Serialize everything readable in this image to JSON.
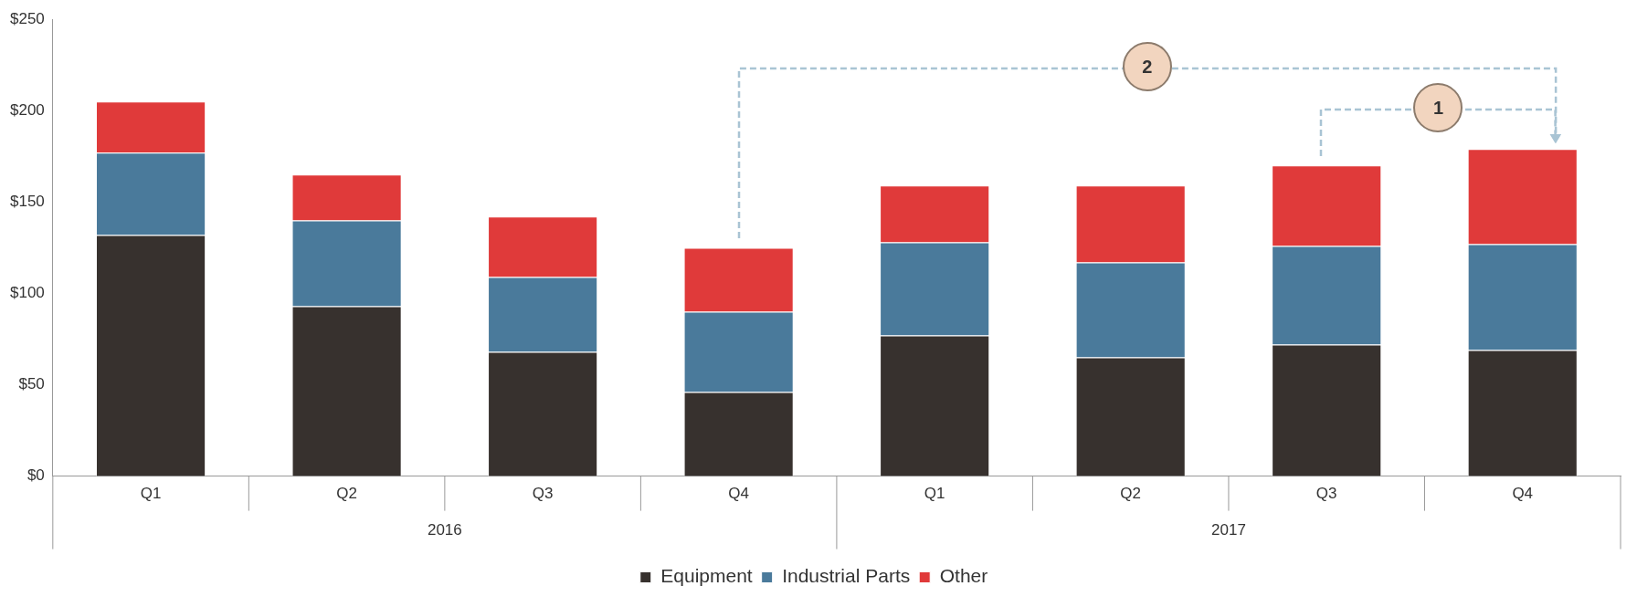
{
  "chart_data": {
    "type": "bar",
    "stacked": true,
    "categories": [
      "Q1",
      "Q2",
      "Q3",
      "Q4",
      "Q1",
      "Q2",
      "Q3",
      "Q4"
    ],
    "series": [
      {
        "name": "Equipment",
        "color": "#37312e",
        "values": [
          132,
          93,
          68,
          46,
          77,
          65,
          72,
          69
        ]
      },
      {
        "name": "Industrial Parts",
        "color": "#4a7a9b",
        "values": [
          45,
          47,
          41,
          44,
          51,
          52,
          54,
          58
        ]
      },
      {
        "name": "Other",
        "color": "#e03a3a",
        "values": [
          28,
          25,
          33,
          35,
          31,
          42,
          44,
          52
        ]
      }
    ],
    "ylim": [
      0,
      250
    ],
    "yticks": [
      {
        "value": 0,
        "label": "$0"
      },
      {
        "value": 50,
        "label": "$50"
      },
      {
        "value": 100,
        "label": "$100"
      },
      {
        "value": 150,
        "label": "$150"
      },
      {
        "value": 200,
        "label": "$200"
      },
      {
        "value": 250,
        "label": "$250"
      }
    ],
    "grid": false,
    "legend": "bottom",
    "annotations": [
      "2016",
      "2017",
      "1",
      "2"
    ]
  }
}
